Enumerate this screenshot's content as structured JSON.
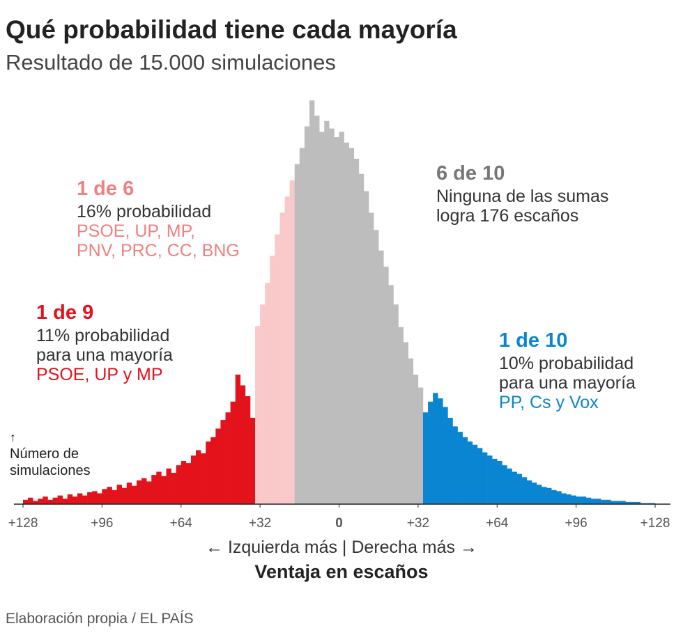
{
  "chart_data": {
    "type": "histogram",
    "title": "Qué probabilidad tiene cada mayoría",
    "subtitle": "Resultado de 15.000 simulaciones",
    "x_caption": "← Izquierda más  |  Derecha más →",
    "x_label": "Ventaja en escaños",
    "y_label": [
      "↑",
      "Número de",
      "simulaciones"
    ],
    "source": "Elaboración propia / EL PAÍS",
    "xlim": [
      -128,
      128
    ],
    "ylim": [
      0,
      400
    ],
    "xticks": [
      {
        "value": -128,
        "label": "+128"
      },
      {
        "value": -96,
        "label": "+96"
      },
      {
        "value": -64,
        "label": "+64"
      },
      {
        "value": -32,
        "label": "+32"
      },
      0,
      {
        "value": 32,
        "label": "+32"
      },
      {
        "value": 64,
        "label": "+64"
      },
      {
        "value": 96,
        "label": "+96"
      },
      {
        "value": 128,
        "label": "+128"
      }
    ],
    "series": [
      {
        "color": "#e3121b",
        "bins": [
          -128,
          -126,
          -124,
          -122,
          -120,
          -118,
          -116,
          -114,
          -112,
          -110,
          -108,
          -106,
          -104,
          -102,
          -100,
          -98,
          -96,
          -94,
          -92,
          -90,
          -88,
          -86,
          -84,
          -82,
          -80,
          -78,
          -76,
          -74,
          -72,
          -70,
          -68,
          -66,
          -64,
          -62,
          -60,
          -58,
          -56,
          -54,
          -52,
          -50,
          -48,
          -46,
          -44,
          -42,
          -40,
          -38,
          -36,
          -34
        ],
        "values": [
          4,
          6,
          3,
          5,
          7,
          4,
          6,
          8,
          5,
          9,
          7,
          10,
          8,
          11,
          12,
          10,
          14,
          16,
          13,
          18,
          15,
          20,
          17,
          22,
          24,
          21,
          27,
          30,
          26,
          33,
          29,
          36,
          40,
          38,
          45,
          50,
          47,
          58,
          62,
          70,
          78,
          85,
          95,
          120,
          110,
          100,
          80
        ]
      },
      {
        "color": "#f9c9c9",
        "bins": [
          -34,
          -32,
          -30,
          -28,
          -26,
          -24,
          -22,
          -20,
          -18
        ],
        "values": [
          165,
          185,
          205,
          230,
          250,
          270,
          285,
          300
        ]
      },
      {
        "color": "#bdbdbd",
        "bins": [
          -18,
          -16,
          -14,
          -12,
          -10,
          -8,
          -6,
          -4,
          -2,
          0,
          2,
          4,
          6,
          8,
          10,
          12,
          14,
          16,
          18,
          20,
          22,
          24,
          26,
          28,
          30,
          32,
          34
        ],
        "values": [
          315,
          330,
          350,
          374,
          360,
          345,
          355,
          348,
          340,
          345,
          335,
          330,
          320,
          306,
          290,
          270,
          254,
          235,
          220,
          203,
          185,
          164,
          150,
          135,
          120,
          108
        ]
      },
      {
        "color": "#0a85d1",
        "bins": [
          34,
          36,
          38,
          40,
          42,
          44,
          46,
          48,
          50,
          52,
          54,
          56,
          58,
          60,
          62,
          64,
          66,
          68,
          70,
          72,
          74,
          76,
          78,
          80,
          82,
          84,
          86,
          88,
          90,
          92,
          94,
          96,
          98,
          100,
          102,
          104,
          106,
          108,
          110,
          112,
          114,
          116,
          118,
          120,
          122,
          124,
          126,
          128
        ],
        "values": [
          85,
          95,
          103,
          98,
          90,
          80,
          72,
          67,
          62,
          58,
          55,
          52,
          48,
          45,
          42,
          40,
          36,
          33,
          30,
          28,
          25,
          22,
          20,
          18,
          16,
          15,
          13,
          12,
          10,
          9,
          8,
          7,
          7,
          6,
          5,
          5,
          4,
          4,
          3,
          3,
          3,
          2,
          2,
          2,
          1,
          1,
          1
        ]
      }
    ],
    "annotations": [
      {
        "heading": "1 de 6",
        "heading_color": "#f08080",
        "lines": [
          {
            "text": "16% probabilidad",
            "color": "#333333"
          },
          {
            "text": "PSOE, UP, MP,",
            "color": "#f08080"
          },
          {
            "text": "PNV, PRC, CC, BNG",
            "color": "#f08080"
          }
        ]
      },
      {
        "heading": "1 de 9",
        "heading_color": "#e3121b",
        "lines": [
          {
            "text": "11% probabilidad",
            "color": "#333333"
          },
          {
            "text": "para una mayoría",
            "color": "#333333"
          },
          {
            "text": "PSOE, UP y MP",
            "color": "#e3121b"
          }
        ]
      },
      {
        "heading": "6 de 10",
        "heading_color": "#777777",
        "lines": [
          {
            "text": "Ninguna de las sumas",
            "color": "#333333"
          },
          {
            "text": "logra 176 escaños",
            "color": "#333333"
          }
        ]
      },
      {
        "heading": "1 de 10",
        "heading_color": "#0a85d1",
        "lines": [
          {
            "text": "10% probabilidad",
            "color": "#333333"
          },
          {
            "text": "para una mayoría",
            "color": "#333333"
          },
          {
            "text": "PP, Cs y Vox",
            "color": "#0a85d1"
          }
        ]
      }
    ]
  }
}
